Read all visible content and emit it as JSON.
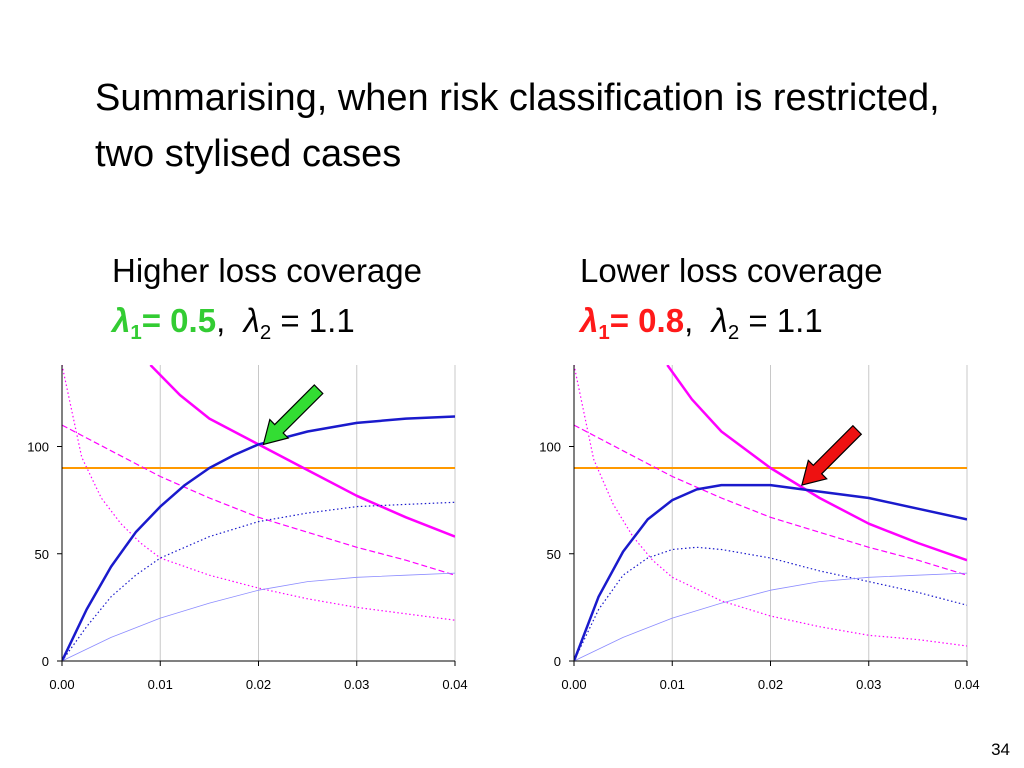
{
  "title": "Summarising, when risk classification is restricted, two stylised cases",
  "page_number": "34",
  "panels": [
    {
      "heading": "Higher loss coverage",
      "lambda1_symbol": "λ",
      "lambda1_sub": "1",
      "lambda1_value": "= 0.5",
      "lambda1_color": "#33cc33",
      "lambda2_symbol": "λ",
      "lambda2_sub": "2",
      "lambda2_value": " = 1.1"
    },
    {
      "heading": "Lower loss coverage",
      "lambda1_symbol": "λ",
      "lambda1_sub": "1",
      "lambda1_value": "= 0.8",
      "lambda1_color": "#ff1a1a",
      "lambda2_symbol": "λ",
      "lambda2_sub": "2",
      "lambda2_value": " = 1.1"
    }
  ],
  "chart_data": [
    {
      "type": "line",
      "xlim": [
        0,
        0.04
      ],
      "ylim": [
        0,
        138
      ],
      "x_ticks": [
        "0.00",
        "0.01",
        "0.02",
        "0.03",
        "0.04"
      ],
      "y_ticks": [
        "0",
        "50",
        "100"
      ],
      "grid": "vertical",
      "annotation": {
        "type": "arrow",
        "color": "#33dd33",
        "points_to": [
          0.0205,
          101
        ]
      },
      "series": [
        {
          "color": "#ff9900",
          "style": "solid",
          "width": 2,
          "points": [
            [
              0,
              90
            ],
            [
              0.04,
              90
            ]
          ]
        },
        {
          "color": "#ff00ff",
          "style": "solid",
          "width": 2.5,
          "points": [
            [
              0.009,
              138
            ],
            [
              0.012,
              124
            ],
            [
              0.015,
              113
            ],
            [
              0.02,
              101
            ],
            [
              0.025,
              89
            ],
            [
              0.03,
              77
            ],
            [
              0.035,
              67
            ],
            [
              0.04,
              58
            ]
          ]
        },
        {
          "color": "#ff00ff",
          "style": "dashed",
          "width": 1.2,
          "points": [
            [
              0,
              110
            ],
            [
              0.005,
              98
            ],
            [
              0.01,
              86
            ],
            [
              0.015,
              76
            ],
            [
              0.02,
              67
            ],
            [
              0.025,
              60
            ],
            [
              0.03,
              53
            ],
            [
              0.035,
              47
            ],
            [
              0.04,
              40
            ]
          ]
        },
        {
          "color": "#ff00ff",
          "style": "dotted",
          "width": 1.2,
          "points": [
            [
              0,
              138
            ],
            [
              0.002,
              95
            ],
            [
              0.004,
              76
            ],
            [
              0.006,
              64
            ],
            [
              0.008,
              55
            ],
            [
              0.01,
              48
            ],
            [
              0.015,
              40
            ],
            [
              0.02,
              34
            ],
            [
              0.025,
              29
            ],
            [
              0.03,
              25
            ],
            [
              0.035,
              22
            ],
            [
              0.04,
              19
            ]
          ]
        },
        {
          "color": "#1a1acc",
          "style": "solid",
          "width": 2.5,
          "points": [
            [
              0,
              0
            ],
            [
              0.0025,
              24
            ],
            [
              0.005,
              44
            ],
            [
              0.0075,
              60
            ],
            [
              0.01,
              72
            ],
            [
              0.0125,
              82
            ],
            [
              0.015,
              90
            ],
            [
              0.0175,
              96
            ],
            [
              0.02,
              101
            ],
            [
              0.025,
              107
            ],
            [
              0.03,
              111
            ],
            [
              0.035,
              113
            ],
            [
              0.04,
              114
            ]
          ]
        },
        {
          "color": "#1a1acc",
          "style": "dotted",
          "width": 1.2,
          "points": [
            [
              0,
              0
            ],
            [
              0.0025,
              16
            ],
            [
              0.005,
              30
            ],
            [
              0.0075,
              40
            ],
            [
              0.01,
              48
            ],
            [
              0.015,
              58
            ],
            [
              0.02,
              65
            ],
            [
              0.025,
              69
            ],
            [
              0.03,
              72
            ],
            [
              0.035,
              73
            ],
            [
              0.04,
              74
            ]
          ]
        },
        {
          "color": "#8c8cff",
          "style": "solid",
          "width": 0.8,
          "points": [
            [
              0,
              0
            ],
            [
              0.005,
              11
            ],
            [
              0.01,
              20
            ],
            [
              0.015,
              27
            ],
            [
              0.02,
              33
            ],
            [
              0.025,
              37
            ],
            [
              0.03,
              39
            ],
            [
              0.035,
              40
            ],
            [
              0.04,
              41
            ]
          ]
        }
      ]
    },
    {
      "type": "line",
      "xlim": [
        0,
        0.04
      ],
      "ylim": [
        0,
        138
      ],
      "x_ticks": [
        "0.00",
        "0.01",
        "0.02",
        "0.03",
        "0.04"
      ],
      "y_ticks": [
        "0",
        "50",
        "100"
      ],
      "grid": "vertical",
      "annotation": {
        "type": "arrow",
        "color": "#ee1111",
        "points_to": [
          0.0232,
          82
        ]
      },
      "series": [
        {
          "color": "#ff9900",
          "style": "solid",
          "width": 2,
          "points": [
            [
              0,
              90
            ],
            [
              0.04,
              90
            ]
          ]
        },
        {
          "color": "#ff00ff",
          "style": "solid",
          "width": 2.5,
          "points": [
            [
              0.0095,
              138
            ],
            [
              0.012,
              122
            ],
            [
              0.015,
              107
            ],
            [
              0.02,
              90
            ],
            [
              0.025,
              76
            ],
            [
              0.03,
              64
            ],
            [
              0.035,
              55
            ],
            [
              0.04,
              47
            ]
          ]
        },
        {
          "color": "#ff00ff",
          "style": "dashed",
          "width": 1.2,
          "points": [
            [
              0,
              110
            ],
            [
              0.005,
              98
            ],
            [
              0.01,
              86
            ],
            [
              0.015,
              76
            ],
            [
              0.02,
              67
            ],
            [
              0.025,
              60
            ],
            [
              0.03,
              53
            ],
            [
              0.035,
              47
            ],
            [
              0.04,
              40
            ]
          ]
        },
        {
          "color": "#ff00ff",
          "style": "dotted",
          "width": 1.2,
          "points": [
            [
              0,
              138
            ],
            [
              0.002,
              94
            ],
            [
              0.004,
              73
            ],
            [
              0.006,
              58
            ],
            [
              0.008,
              47
            ],
            [
              0.01,
              39
            ],
            [
              0.015,
              28
            ],
            [
              0.02,
              21
            ],
            [
              0.025,
              16
            ],
            [
              0.03,
              12
            ],
            [
              0.035,
              10
            ],
            [
              0.04,
              7
            ]
          ]
        },
        {
          "color": "#1a1acc",
          "style": "solid",
          "width": 2.5,
          "points": [
            [
              0,
              0
            ],
            [
              0.0025,
              30
            ],
            [
              0.005,
              51
            ],
            [
              0.0075,
              66
            ],
            [
              0.01,
              75
            ],
            [
              0.0125,
              80
            ],
            [
              0.015,
              82
            ],
            [
              0.0175,
              82
            ],
            [
              0.02,
              82
            ],
            [
              0.025,
              79
            ],
            [
              0.03,
              76
            ],
            [
              0.035,
              71
            ],
            [
              0.04,
              66
            ]
          ]
        },
        {
          "color": "#1a1acc",
          "style": "dotted",
          "width": 1.2,
          "points": [
            [
              0,
              0
            ],
            [
              0.0025,
              24
            ],
            [
              0.005,
              40
            ],
            [
              0.0075,
              48
            ],
            [
              0.01,
              52
            ],
            [
              0.0125,
              53
            ],
            [
              0.015,
              52
            ],
            [
              0.02,
              48
            ],
            [
              0.025,
              42
            ],
            [
              0.03,
              37
            ],
            [
              0.035,
              32
            ],
            [
              0.04,
              26
            ]
          ]
        },
        {
          "color": "#8c8cff",
          "style": "solid",
          "width": 0.8,
          "points": [
            [
              0,
              0
            ],
            [
              0.005,
              11
            ],
            [
              0.01,
              20
            ],
            [
              0.015,
              27
            ],
            [
              0.02,
              33
            ],
            [
              0.025,
              37
            ],
            [
              0.03,
              39
            ],
            [
              0.035,
              40
            ],
            [
              0.04,
              41
            ]
          ]
        }
      ]
    }
  ]
}
